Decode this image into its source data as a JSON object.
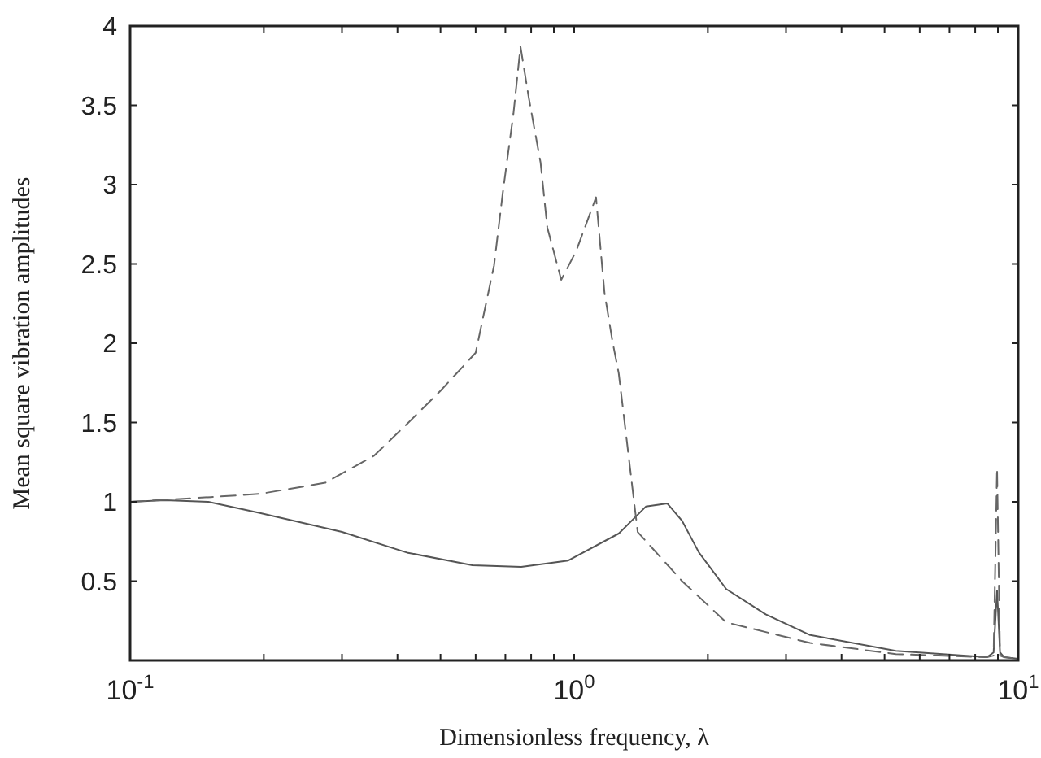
{
  "chart_data": {
    "type": "line",
    "xlabel": "Dimensionless frequency, λ",
    "ylabel": "Mean square vibration amplitudes",
    "log": "x",
    "grid": false,
    "xlim": [
      0.1,
      10
    ],
    "ylim": [
      0,
      4
    ],
    "xticks": [
      {
        "value": 0.1,
        "label": "10$^{-1}$"
      },
      {
        "value": 0.2,
        "label": null
      },
      {
        "value": 0.3,
        "label": null
      },
      {
        "value": 0.4,
        "label": null
      },
      {
        "value": 0.5,
        "label": null
      },
      {
        "value": 0.6,
        "label": null
      },
      {
        "value": 0.7,
        "label": null
      },
      {
        "value": 0.8,
        "label": null
      },
      {
        "value": 0.9,
        "label": null
      },
      {
        "value": 1,
        "label": "10$^{0}$"
      },
      {
        "value": 2,
        "label": null
      },
      {
        "value": 3,
        "label": null
      },
      {
        "value": 4,
        "label": null
      },
      {
        "value": 5,
        "label": null
      },
      {
        "value": 6,
        "label": null
      },
      {
        "value": 7,
        "label": null
      },
      {
        "value": 8,
        "label": null
      },
      {
        "value": 9,
        "label": null
      },
      {
        "value": 10,
        "label": "10$^{1}$"
      }
    ],
    "yticks": [
      0.5,
      1,
      1.5,
      2,
      2.5,
      3,
      3.5,
      4
    ],
    "series": [
      {
        "color": "#555555",
        "line_style": "solid",
        "x": [
          0.1,
          0.12,
          0.15,
          0.196,
          0.3,
          0.42,
          0.59,
          0.76,
          0.97,
          1.26,
          1.45,
          1.62,
          1.75,
          1.91,
          2.2,
          2.7,
          3.4,
          5.3,
          8.5,
          8.8,
          8.96,
          9.1,
          9.3,
          10
        ],
        "values": [
          1.0,
          1.01,
          1.0,
          0.93,
          0.81,
          0.68,
          0.6,
          0.59,
          0.63,
          0.8,
          0.97,
          0.99,
          0.88,
          0.68,
          0.45,
          0.29,
          0.16,
          0.06,
          0.02,
          0.05,
          0.44,
          0.05,
          0.02,
          0.01
        ]
      },
      {
        "color": "#666666",
        "line_style": "dashed",
        "x": [
          0.1,
          0.152,
          0.196,
          0.275,
          0.354,
          0.42,
          0.5,
          0.6,
          0.66,
          0.69,
          0.73,
          0.757,
          0.79,
          0.84,
          0.87,
          0.935,
          1.01,
          1.12,
          1.17,
          1.22,
          1.26,
          1.39,
          1.75,
          2.2,
          3.4,
          5.3,
          8.5,
          8.8,
          8.96,
          9.1,
          9.3,
          10
        ],
        "values": [
          1.0,
          1.03,
          1.05,
          1.12,
          1.29,
          1.49,
          1.7,
          1.94,
          2.49,
          2.94,
          3.45,
          3.87,
          3.55,
          3.14,
          2.73,
          2.4,
          2.58,
          2.92,
          2.32,
          2.01,
          1.81,
          0.81,
          0.5,
          0.24,
          0.11,
          0.04,
          0.02,
          0.03,
          1.21,
          0.03,
          0.02,
          0.01
        ]
      }
    ]
  }
}
